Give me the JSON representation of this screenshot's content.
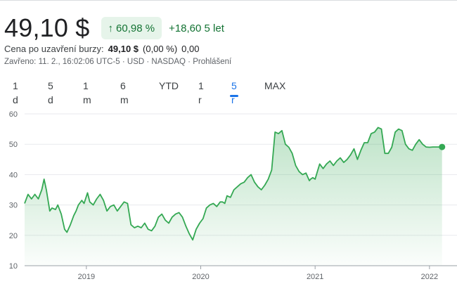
{
  "quote": {
    "price": "49,10 $",
    "change_percent": "60,98 %",
    "change_arrow": "↑",
    "change_abs": "+18,60",
    "change_period": "5 let",
    "close_label": "Cena po uzavření burzy:",
    "close_price": "49,10 $",
    "close_change_pct": "(0,00 %)",
    "close_change_abs": "0,00",
    "market_info": "Zavřeno: 11. 2., 16:02:06 UTC-5 · USD · NASDAQ · Prohlášení"
  },
  "ranges": [
    {
      "label": "1 d"
    },
    {
      "label": "5 d"
    },
    {
      "label": "1 m"
    },
    {
      "label": "6 m"
    },
    {
      "label": "YTD"
    },
    {
      "label": "1 r"
    },
    {
      "label": "5 r",
      "active": true
    },
    {
      "label": "MAX"
    }
  ],
  "colors": {
    "positive": "#137333",
    "line": "#34a853",
    "accent": "#1a73e8"
  },
  "chart_data": {
    "type": "area",
    "ylim": [
      10,
      60
    ],
    "yticks": [
      10,
      20,
      30,
      40,
      50,
      60
    ],
    "xticks": [
      "2019",
      "2020",
      "2021",
      "2022"
    ],
    "xtick_positions": [
      2019.0,
      2020.0,
      2021.0,
      2022.0
    ],
    "xlim": [
      2018.46,
      2022.13
    ],
    "grid": true,
    "series": [
      {
        "x": [
          2018.46,
          2018.49,
          2018.52,
          2018.55,
          2018.58,
          2018.61,
          2018.63,
          2018.65,
          2018.68,
          2018.7,
          2018.73,
          2018.75,
          2018.78,
          2018.81,
          2018.83,
          2018.86,
          2018.89,
          2018.91,
          2018.93,
          2018.96,
          2018.98,
          2019.01,
          2019.03,
          2019.06,
          2019.09,
          2019.12,
          2019.15,
          2019.18,
          2019.21,
          2019.24,
          2019.27,
          2019.3,
          2019.33,
          2019.36,
          2019.39,
          2019.42,
          2019.45,
          2019.48,
          2019.51,
          2019.54,
          2019.57,
          2019.6,
          2019.63,
          2019.66,
          2019.69,
          2019.72,
          2019.75,
          2019.78,
          2019.81,
          2019.84,
          2019.87,
          2019.9,
          2019.93,
          2019.96,
          2019.99,
          2020.02,
          2020.05,
          2020.08,
          2020.11,
          2020.14,
          2020.17,
          2020.19,
          2020.21,
          2020.23,
          2020.26,
          2020.29,
          2020.32,
          2020.35,
          2020.38,
          2020.41,
          2020.44,
          2020.47,
          2020.5,
          2020.53,
          2020.56,
          2020.59,
          2020.62,
          2020.65,
          2020.68,
          2020.71,
          2020.74,
          2020.77,
          2020.8,
          2020.83,
          2020.86,
          2020.89,
          2020.92,
          2020.95,
          2020.96,
          2020.98,
          2021.0,
          2021.02,
          2021.04,
          2021.07,
          2021.1,
          2021.13,
          2021.16,
          2021.19,
          2021.22,
          2021.25,
          2021.28,
          2021.31,
          2021.34,
          2021.37,
          2021.4,
          2021.43,
          2021.46,
          2021.49,
          2021.52,
          2021.55,
          2021.58,
          2021.61,
          2021.64,
          2021.67,
          2021.7,
          2021.73,
          2021.76,
          2021.79,
          2021.82,
          2021.85,
          2021.88,
          2021.91,
          2021.94,
          2021.97,
          2022.0,
          2022.03,
          2022.06,
          2022.09,
          2022.11
        ],
        "y": [
          30.5,
          33.5,
          32.0,
          33.5,
          32.0,
          35.0,
          38.5,
          35.0,
          28.0,
          29.0,
          28.5,
          30.0,
          27.0,
          22.0,
          21.0,
          23.5,
          26.5,
          28.0,
          30.0,
          31.5,
          30.5,
          34.0,
          31.0,
          30.0,
          32.0,
          33.5,
          31.5,
          28.0,
          29.5,
          30.0,
          28.0,
          29.5,
          31.0,
          30.5,
          23.5,
          22.5,
          23.0,
          22.5,
          24.0,
          22.0,
          21.5,
          23.0,
          26.0,
          27.0,
          25.0,
          24.0,
          26.0,
          27.0,
          27.5,
          26.0,
          23.0,
          20.5,
          18.5,
          22.0,
          24.0,
          25.5,
          29.0,
          30.0,
          30.5,
          29.5,
          31.0,
          31.0,
          30.5,
          33.0,
          32.5,
          35.0,
          36.0,
          37.0,
          37.5,
          39.0,
          40.0,
          37.5,
          36.0,
          35.0,
          36.5,
          38.5,
          41.5,
          54.0,
          53.5,
          54.5,
          50.0,
          49.0,
          47.0,
          43.0,
          41.0,
          40.0,
          40.5,
          38.0,
          38.5,
          39.0,
          38.5,
          41.0,
          43.5,
          42.0,
          43.5,
          44.5,
          43.0,
          44.5,
          45.5,
          44.0,
          45.0,
          46.5,
          48.5,
          45.0,
          48.0,
          50.5,
          50.5,
          53.5,
          54.0,
          55.5,
          55.0,
          47.0,
          47.0,
          49.0,
          54.0,
          55.0,
          54.5,
          50.0,
          48.5,
          48.0,
          50.0,
          51.5,
          50.0,
          49.1,
          49.0,
          49.1,
          49.1,
          49.1,
          49.1
        ]
      }
    ]
  }
}
